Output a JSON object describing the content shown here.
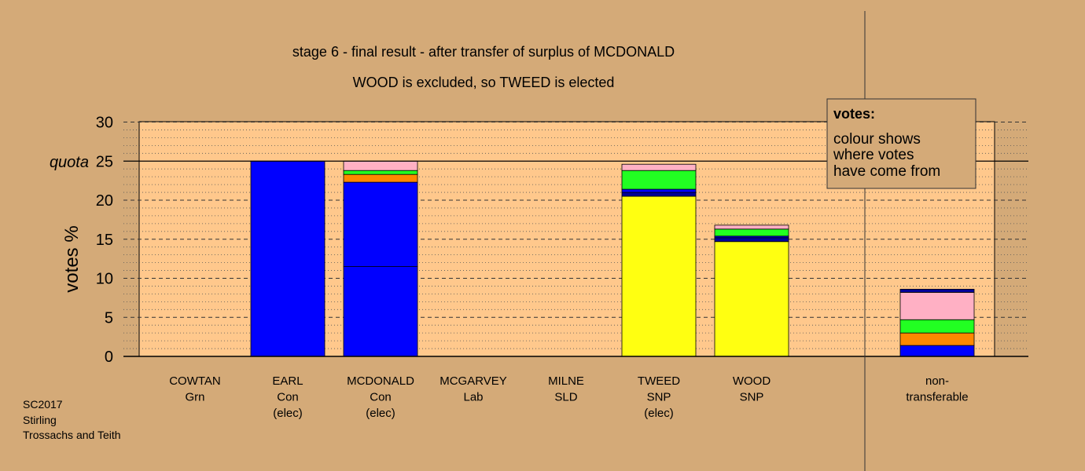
{
  "footer": [
    "SC2017",
    "Stirling",
    "Trossachs and Teith"
  ],
  "legend_box": {
    "heading": "votes:",
    "lines": [
      "colour shows",
      "where votes",
      "have come from"
    ]
  },
  "colors": {
    "background": "#d4aa78",
    "plot_area": "#ffc88c",
    "yellow": "#ffff11",
    "blue": "#0000ff",
    "navy": "#000099",
    "orange": "#ff8800",
    "green": "#22ff22",
    "pink": "#ffb0c4"
  },
  "chart_data": {
    "type": "bar",
    "stacked": true,
    "title": "stage 6 - final result - after transfer of surplus of MCDONALD",
    "subtitle": "WOOD is excluded, so TWEED is elected",
    "ylabel": "votes %",
    "ylim": [
      0,
      30
    ],
    "yticks": [
      0,
      5,
      10,
      15,
      20,
      25,
      30
    ],
    "quota": 25,
    "quota_label": "quota",
    "grid": true,
    "categories": [
      [
        "COWTAN",
        "Grn"
      ],
      [
        "EARL",
        "Con",
        "(elec)"
      ],
      [
        "MCDONALD",
        "Con",
        "(elec)"
      ],
      [
        "MCGARVEY",
        "Lab"
      ],
      [
        "MILNE",
        "SLD"
      ],
      [
        "TWEED",
        "SNP",
        "(elec)"
      ],
      [
        "WOOD",
        "SNP"
      ],
      [],
      [
        "non-",
        "transferable"
      ]
    ],
    "bars": [
      [],
      [
        {
          "color": "blue",
          "value": 25.0
        }
      ],
      [
        {
          "color": "blue",
          "value": 11.5
        },
        {
          "color": "blue",
          "value": 10.8
        },
        {
          "color": "orange",
          "value": 1.0
        },
        {
          "color": "green",
          "value": 0.5
        },
        {
          "color": "pink",
          "value": 1.2
        }
      ],
      [],
      [],
      [
        {
          "color": "yellow",
          "value": 20.5
        },
        {
          "color": "navy",
          "value": 0.5
        },
        {
          "color": "blue",
          "value": 0.4
        },
        {
          "color": "green",
          "value": 2.4
        },
        {
          "color": "pink",
          "value": 0.8
        }
      ],
      [
        {
          "color": "yellow",
          "value": 14.7
        },
        {
          "color": "navy",
          "value": 0.5
        },
        {
          "color": "blue",
          "value": 0.2
        },
        {
          "color": "green",
          "value": 0.9
        },
        {
          "color": "pink",
          "value": 0.5
        }
      ],
      [],
      [
        {
          "color": "blue",
          "value": 1.4
        },
        {
          "color": "orange",
          "value": 1.6
        },
        {
          "color": "green",
          "value": 1.7
        },
        {
          "color": "pink",
          "value": 3.5
        },
        {
          "color": "navy",
          "value": 0.4
        }
      ]
    ]
  }
}
